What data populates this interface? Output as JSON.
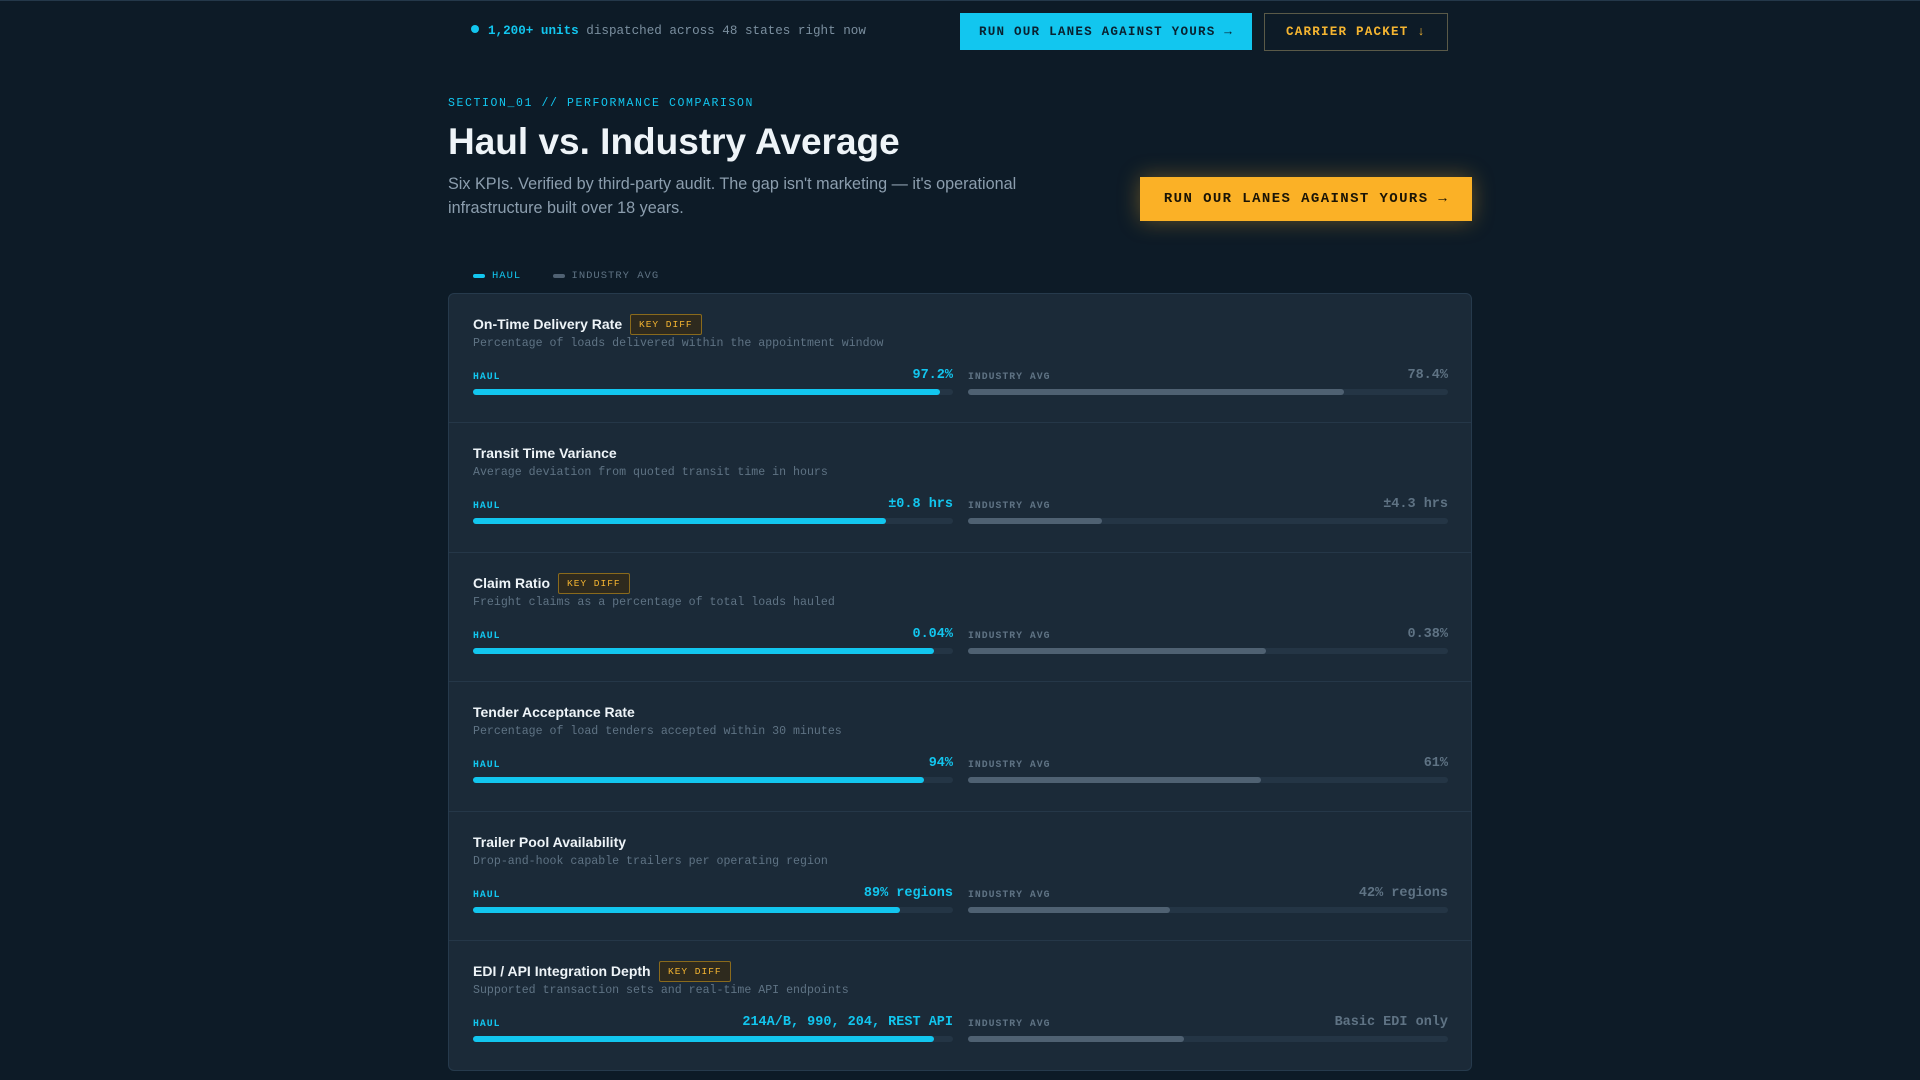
{
  "topbar": {
    "live_count": "1,200+ units",
    "live_text": "dispatched across 48 states right now",
    "cta_primary": "RUN OUR LANES AGAINST YOURS →",
    "cta_secondary": "CARRIER PACKET ↓"
  },
  "hero": {
    "eyebrow": "SECTION_01 // PERFORMANCE COMPARISON",
    "title": "Haul vs. Industry Average",
    "subtitle": "Six KPIs. Verified by third-party audit. The gap isn't marketing — it's operational infrastructure built over 18 years.",
    "cta": "RUN OUR LANES AGAINST YOURS →"
  },
  "legend": {
    "haul": "HAUL",
    "industry": "INDUSTRY AVG"
  },
  "labels": {
    "haul": "HAUL",
    "industry": "INDUSTRY AVG"
  },
  "colors": {
    "background": "#0d1b27",
    "accent_cyan": "#12c6ef",
    "accent_amber": "#fbb126",
    "panel": "#1b2a38",
    "industry_bar": "#4f6172"
  },
  "kpis": [
    {
      "title": "On-Time Delivery Rate",
      "badge": "KEY DIFF",
      "description": "Percentage of loads delivered within the appointment window",
      "haul_value": "97.2%",
      "industry_value": "78.4%",
      "haul_level": 0.972,
      "industry_level": 0.784
    },
    {
      "title": "Transit Time Variance",
      "badge": "",
      "description": "Average deviation from quoted transit time in hours",
      "haul_value": "±0.8 hrs",
      "industry_value": "±4.3 hrs",
      "haul_level": 0.86,
      "industry_level": 0.28
    },
    {
      "title": "Claim Ratio",
      "badge": "KEY DIFF",
      "description": "Freight claims as a percentage of total loads hauled",
      "haul_value": "0.04%",
      "industry_value": "0.38%",
      "haul_level": 0.96,
      "industry_level": 0.62
    },
    {
      "title": "Tender Acceptance Rate",
      "badge": "",
      "description": "Percentage of load tenders accepted within 30 minutes",
      "haul_value": "94%",
      "industry_value": "61%",
      "haul_level": 0.94,
      "industry_level": 0.61
    },
    {
      "title": "Trailer Pool Availability",
      "badge": "",
      "description": "Drop-and-hook capable trailers per operating region",
      "haul_value": "89% regions",
      "industry_value": "42% regions",
      "haul_level": 0.89,
      "industry_level": 0.42
    },
    {
      "title": "EDI / API Integration Depth",
      "badge": "KEY DIFF",
      "description": "Supported transaction sets and real-time API endpoints",
      "haul_value": "214A/B, 990, 204, REST API",
      "industry_value": "Basic EDI only",
      "haul_level": 0.96,
      "industry_level": 0.45
    }
  ]
}
